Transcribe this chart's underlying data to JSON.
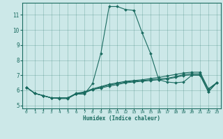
{
  "xlabel": "Humidex (Indice chaleur)",
  "xlim": [
    -0.5,
    23.5
  ],
  "ylim": [
    4.8,
    11.8
  ],
  "xticks": [
    0,
    1,
    2,
    3,
    4,
    5,
    6,
    7,
    8,
    9,
    10,
    11,
    12,
    13,
    14,
    15,
    16,
    17,
    18,
    19,
    20,
    21,
    22,
    23
  ],
  "yticks": [
    5,
    6,
    7,
    8,
    9,
    10,
    11
  ],
  "bg_color": "#cce8e8",
  "line_color": "#1a6b60",
  "grid_color": "#aad4d0",
  "series": [
    [
      6.2,
      5.8,
      5.65,
      5.5,
      5.45,
      5.45,
      5.75,
      5.75,
      6.45,
      8.45,
      11.55,
      11.55,
      11.35,
      11.3,
      9.8,
      8.45,
      6.7,
      6.55,
      6.5,
      6.55,
      7.0,
      7.0,
      5.9,
      6.5
    ],
    [
      6.2,
      5.8,
      5.65,
      5.5,
      5.5,
      5.5,
      5.78,
      5.85,
      6.05,
      6.2,
      6.35,
      6.45,
      6.55,
      6.6,
      6.65,
      6.7,
      6.75,
      6.8,
      6.9,
      7.05,
      7.1,
      7.1,
      6.05,
      6.5
    ],
    [
      6.2,
      5.8,
      5.65,
      5.5,
      5.5,
      5.5,
      5.8,
      5.9,
      6.1,
      6.25,
      6.4,
      6.5,
      6.6,
      6.65,
      6.7,
      6.78,
      6.85,
      6.95,
      7.05,
      7.15,
      7.2,
      7.2,
      6.1,
      6.5
    ],
    [
      6.2,
      5.8,
      5.65,
      5.5,
      5.5,
      5.5,
      5.78,
      5.82,
      6.05,
      6.15,
      6.28,
      6.38,
      6.5,
      6.55,
      6.6,
      6.65,
      6.7,
      6.75,
      6.85,
      6.98,
      7.02,
      7.02,
      5.9,
      6.5
    ]
  ]
}
